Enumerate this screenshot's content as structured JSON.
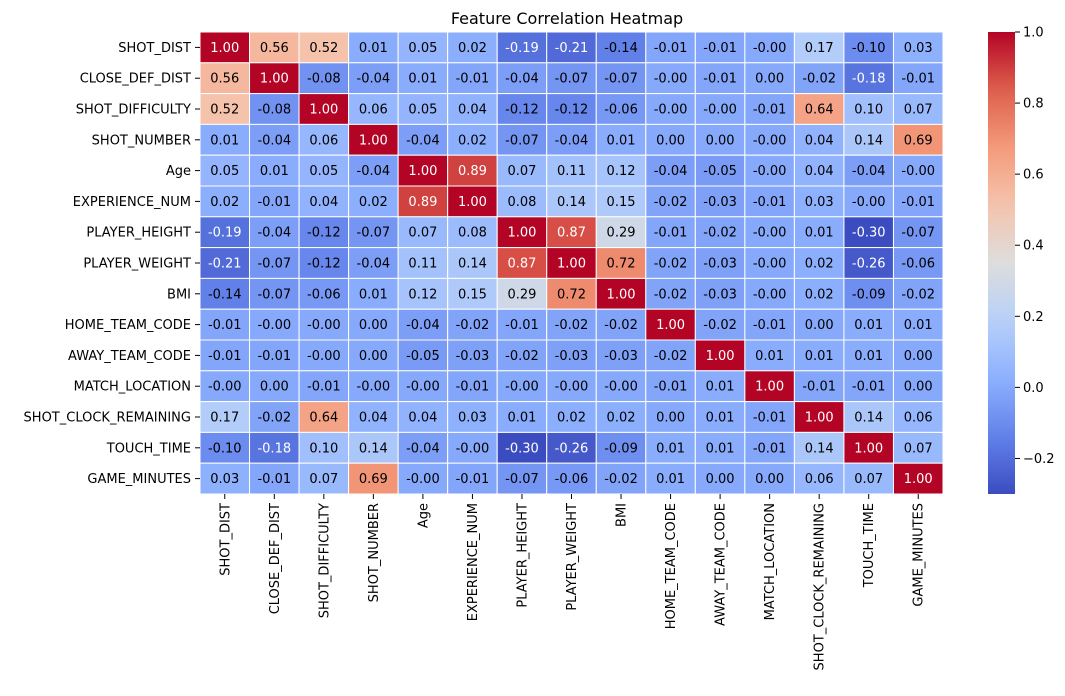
{
  "chart_data": {
    "type": "heatmap",
    "title": "Feature Correlation Heatmap",
    "xlabel": "",
    "ylabel": "",
    "colormap": "coolwarm",
    "value_format": "2 decimals",
    "cell_border_color": "#ffffff",
    "rows": [
      "SHOT_DIST",
      "CLOSE_DEF_DIST",
      "SHOT_DIFFICULTY",
      "SHOT_NUMBER",
      "Age",
      "EXPERIENCE_NUM",
      "PLAYER_HEIGHT",
      "PLAYER_WEIGHT",
      "BMI",
      "HOME_TEAM_CODE",
      "AWAY_TEAM_CODE",
      "MATCH_LOCATION",
      "SHOT_CLOCK_REMAINING",
      "TOUCH_TIME",
      "GAME_MINUTES"
    ],
    "columns": [
      "SHOT_DIST",
      "CLOSE_DEF_DIST",
      "SHOT_DIFFICULTY",
      "SHOT_NUMBER",
      "Age",
      "EXPERIENCE_NUM",
      "PLAYER_HEIGHT",
      "PLAYER_WEIGHT",
      "BMI",
      "HOME_TEAM_CODE",
      "AWAY_TEAM_CODE",
      "MATCH_LOCATION",
      "SHOT_CLOCK_REMAINING",
      "TOUCH_TIME",
      "GAME_MINUTES"
    ],
    "values": [
      [
        1.0,
        0.56,
        0.52,
        0.01,
        0.05,
        0.02,
        -0.19,
        -0.21,
        -0.14,
        -0.01,
        -0.01,
        -0.0,
        0.17,
        -0.1,
        0.03
      ],
      [
        0.56,
        1.0,
        -0.08,
        -0.04,
        0.01,
        -0.01,
        -0.04,
        -0.07,
        -0.07,
        -0.0,
        -0.01,
        0.0,
        -0.02,
        -0.18,
        -0.01
      ],
      [
        0.52,
        -0.08,
        1.0,
        0.06,
        0.05,
        0.04,
        -0.12,
        -0.12,
        -0.06,
        -0.0,
        -0.0,
        -0.01,
        0.64,
        0.1,
        0.07
      ],
      [
        0.01,
        -0.04,
        0.06,
        1.0,
        -0.04,
        0.02,
        -0.07,
        -0.04,
        0.01,
        0.0,
        0.0,
        -0.0,
        0.04,
        0.14,
        0.69
      ],
      [
        0.05,
        0.01,
        0.05,
        -0.04,
        1.0,
        0.89,
        0.07,
        0.11,
        0.12,
        -0.04,
        -0.05,
        -0.0,
        0.04,
        -0.04,
        -0.0
      ],
      [
        0.02,
        -0.01,
        0.04,
        0.02,
        0.89,
        1.0,
        0.08,
        0.14,
        0.15,
        -0.02,
        -0.03,
        -0.01,
        0.03,
        -0.0,
        -0.01
      ],
      [
        -0.19,
        -0.04,
        -0.12,
        -0.07,
        0.07,
        0.08,
        1.0,
        0.87,
        0.29,
        -0.01,
        -0.02,
        -0.0,
        0.01,
        -0.3,
        -0.07
      ],
      [
        -0.21,
        -0.07,
        -0.12,
        -0.04,
        0.11,
        0.14,
        0.87,
        1.0,
        0.72,
        -0.02,
        -0.03,
        -0.0,
        0.02,
        -0.26,
        -0.06
      ],
      [
        -0.14,
        -0.07,
        -0.06,
        0.01,
        0.12,
        0.15,
        0.29,
        0.72,
        1.0,
        -0.02,
        -0.03,
        -0.0,
        0.02,
        -0.09,
        -0.02
      ],
      [
        -0.01,
        -0.0,
        -0.0,
        0.0,
        -0.04,
        -0.02,
        -0.01,
        -0.02,
        -0.02,
        1.0,
        -0.02,
        -0.01,
        0.0,
        0.01,
        0.01
      ],
      [
        -0.01,
        -0.01,
        -0.0,
        0.0,
        -0.05,
        -0.03,
        -0.02,
        -0.03,
        -0.03,
        -0.02,
        1.0,
        0.01,
        0.01,
        0.01,
        0.0
      ],
      [
        -0.0,
        0.0,
        -0.01,
        -0.0,
        -0.0,
        -0.01,
        -0.0,
        -0.0,
        -0.0,
        -0.01,
        0.01,
        1.0,
        -0.01,
        -0.01,
        0.0
      ],
      [
        0.17,
        -0.02,
        0.64,
        0.04,
        0.04,
        0.03,
        0.01,
        0.02,
        0.02,
        0.0,
        0.01,
        -0.01,
        1.0,
        0.14,
        0.06
      ],
      [
        -0.1,
        -0.18,
        0.1,
        0.14,
        -0.04,
        -0.0,
        -0.3,
        -0.26,
        -0.09,
        0.01,
        0.01,
        -0.01,
        0.14,
        1.0,
        0.07
      ],
      [
        0.03,
        -0.01,
        0.07,
        0.69,
        -0.0,
        -0.01,
        -0.07,
        -0.06,
        -0.02,
        0.01,
        0.0,
        0.0,
        0.06,
        0.07,
        1.0
      ]
    ],
    "display_labels": [
      [
        "1.00",
        "0.56",
        "0.52",
        "0.01",
        "0.05",
        "0.02",
        "-0.19",
        "-0.21",
        "-0.14",
        "-0.01",
        "-0.01",
        "-0.00",
        "0.17",
        "-0.10",
        "0.03"
      ],
      [
        "0.56",
        "1.00",
        "-0.08",
        "-0.04",
        "0.01",
        "-0.01",
        "-0.04",
        "-0.07",
        "-0.07",
        "-0.00",
        "-0.01",
        "0.00",
        "-0.02",
        "-0.18",
        "-0.01"
      ],
      [
        "0.52",
        "-0.08",
        "1.00",
        "0.06",
        "0.05",
        "0.04",
        "-0.12",
        "-0.12",
        "-0.06",
        "-0.00",
        "-0.00",
        "-0.01",
        "0.64",
        "0.10",
        "0.07"
      ],
      [
        "0.01",
        "-0.04",
        "0.06",
        "1.00",
        "-0.04",
        "0.02",
        "-0.07",
        "-0.04",
        "0.01",
        "0.00",
        "0.00",
        "-0.00",
        "0.04",
        "0.14",
        "0.69"
      ],
      [
        "0.05",
        "0.01",
        "0.05",
        "-0.04",
        "1.00",
        "0.89",
        "0.07",
        "0.11",
        "0.12",
        "-0.04",
        "-0.05",
        "-0.00",
        "0.04",
        "-0.04",
        "-0.00"
      ],
      [
        "0.02",
        "-0.01",
        "0.04",
        "0.02",
        "0.89",
        "1.00",
        "0.08",
        "0.14",
        "0.15",
        "-0.02",
        "-0.03",
        "-0.01",
        "0.03",
        "-0.00",
        "-0.01"
      ],
      [
        "-0.19",
        "-0.04",
        "-0.12",
        "-0.07",
        "0.07",
        "0.08",
        "1.00",
        "0.87",
        "0.29",
        "-0.01",
        "-0.02",
        "-0.00",
        "0.01",
        "-0.30",
        "-0.07"
      ],
      [
        "-0.21",
        "-0.07",
        "-0.12",
        "-0.04",
        "0.11",
        "0.14",
        "0.87",
        "1.00",
        "0.72",
        "-0.02",
        "-0.03",
        "-0.00",
        "0.02",
        "-0.26",
        "-0.06"
      ],
      [
        "-0.14",
        "-0.07",
        "-0.06",
        "0.01",
        "0.12",
        "0.15",
        "0.29",
        "0.72",
        "1.00",
        "-0.02",
        "-0.03",
        "-0.00",
        "0.02",
        "-0.09",
        "-0.02"
      ],
      [
        "-0.01",
        "-0.00",
        "-0.00",
        "0.00",
        "-0.04",
        "-0.02",
        "-0.01",
        "-0.02",
        "-0.02",
        "1.00",
        "-0.02",
        "-0.01",
        "0.00",
        "0.01",
        "0.01"
      ],
      [
        "-0.01",
        "-0.01",
        "-0.00",
        "0.00",
        "-0.05",
        "-0.03",
        "-0.02",
        "-0.03",
        "-0.03",
        "-0.02",
        "1.00",
        "0.01",
        "0.01",
        "0.01",
        "0.00"
      ],
      [
        "-0.00",
        "0.00",
        "-0.01",
        "-0.00",
        "-0.00",
        "-0.01",
        "-0.00",
        "-0.00",
        "-0.00",
        "-0.01",
        "0.01",
        "1.00",
        "-0.01",
        "-0.01",
        "0.00"
      ],
      [
        "0.17",
        "-0.02",
        "0.64",
        "0.04",
        "0.04",
        "0.03",
        "0.01",
        "0.02",
        "0.02",
        "0.00",
        "0.01",
        "-0.01",
        "1.00",
        "0.14",
        "0.06"
      ],
      [
        "-0.10",
        "-0.18",
        "0.10",
        "0.14",
        "-0.04",
        "-0.00",
        "-0.30",
        "-0.26",
        "-0.09",
        "0.01",
        "0.01",
        "-0.01",
        "0.14",
        "1.00",
        "0.07"
      ],
      [
        "0.03",
        "-0.01",
        "0.07",
        "0.69",
        "-0.00",
        "-0.01",
        "-0.07",
        "-0.06",
        "-0.02",
        "0.01",
        "0.00",
        "0.00",
        "0.06",
        "0.07",
        "1.00"
      ]
    ],
    "colorbar": {
      "range": [
        -0.3,
        1.0
      ],
      "ticks": [
        -0.2,
        0.0,
        0.2,
        0.4,
        0.6,
        0.8,
        1.0
      ],
      "tick_labels": [
        "−0.2",
        "0.0",
        "0.2",
        "0.4",
        "0.6",
        "0.8",
        "1.0"
      ],
      "placement": "right"
    }
  }
}
